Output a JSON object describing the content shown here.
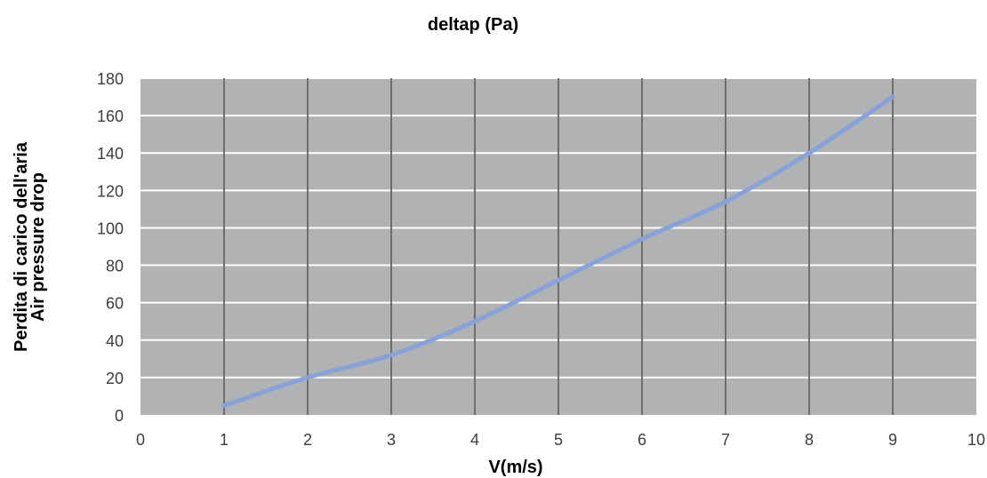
{
  "chart_data": {
    "type": "line",
    "title": "deltap (Pa)",
    "xlabel": "V(m/s)",
    "ylabel_lines": [
      "Perdita di carico dell'aria",
      "Air pressure drop"
    ],
    "xlim": [
      0,
      10
    ],
    "ylim": [
      0,
      180
    ],
    "xticks": [
      0,
      1,
      2,
      3,
      4,
      5,
      6,
      7,
      8,
      9,
      10
    ],
    "yticks": [
      0,
      20,
      40,
      60,
      80,
      100,
      120,
      140,
      160,
      180
    ],
    "grid": true,
    "series": [
      {
        "x": [
          1,
          2,
          3,
          4,
          5,
          6,
          7,
          8,
          9
        ],
        "y": [
          5,
          20,
          32,
          50,
          72,
          94,
          114,
          140,
          170
        ]
      }
    ]
  },
  "colors": {
    "plot_background": "#b1b2b3",
    "horizontal_grid": "#ffffff",
    "vertical_grid": "#6d6e70",
    "series_line": "#86a2d8",
    "text": "#000000",
    "tick_text": "#3d3d3d"
  }
}
